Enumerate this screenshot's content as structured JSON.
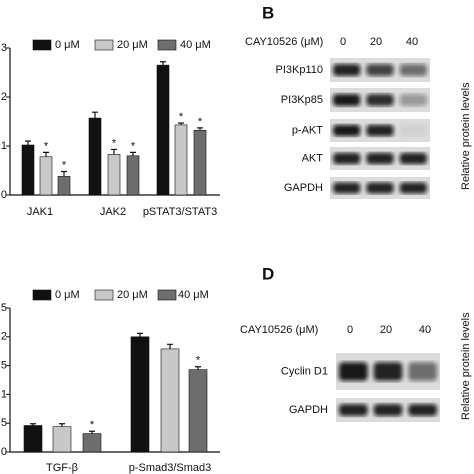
{
  "chart_data": [
    {
      "type": "bar",
      "categories": [
        "JAK1",
        "JAK2",
        "pSTAT3/STAT3"
      ],
      "ylim": [
        0,
        3
      ],
      "yticks": [
        0,
        1,
        2,
        3
      ],
      "series": [
        {
          "name": "0 μM",
          "color": "#111111",
          "values": [
            1.02,
            1.57,
            2.65
          ],
          "errors": [
            0.08,
            0.12,
            0.07
          ]
        },
        {
          "name": "20 μM",
          "color": "#c8c8c8",
          "values": [
            0.78,
            0.83,
            1.43
          ],
          "errors": [
            0.09,
            0.1,
            0.04
          ],
          "significance": [
            "*",
            "*",
            "*"
          ]
        },
        {
          "name": "40 μM",
          "color": "#6e6e6e",
          "values": [
            0.38,
            0.8,
            1.32
          ],
          "errors": [
            0.1,
            0.07,
            0.05
          ],
          "significance": [
            "*",
            "*",
            "*"
          ]
        }
      ]
    },
    {
      "type": "bar",
      "categories": [
        "TGF-β",
        "p-Smad3/Smad3"
      ],
      "ylim": [
        0,
        2.5
      ],
      "yticks": [
        0,
        0.5,
        1.0,
        1.5,
        2.0,
        2.5
      ],
      "series": [
        {
          "name": "0 μM",
          "color": "#111111",
          "values": [
            0.46,
            2.0
          ],
          "errors": [
            0.03,
            0.06
          ]
        },
        {
          "name": "20 μM",
          "color": "#c8c8c8",
          "values": [
            0.44,
            1.79
          ],
          "errors": [
            0.05,
            0.08
          ],
          "significance": [
            null,
            null
          ]
        },
        {
          "name": "40 μM",
          "color": "#6e6e6e",
          "values": [
            0.32,
            1.43
          ],
          "errors": [
            0.04,
            0.05
          ],
          "significance": [
            "*",
            "*"
          ]
        }
      ]
    }
  ],
  "blots": [
    {
      "label": "B",
      "treatment": "CAY10526 (μM)",
      "doses": [
        "0",
        "20",
        "40"
      ],
      "rows": [
        "PI3Kp110",
        "PI3Kp85",
        "p-AKT",
        "AKT",
        "GAPDH"
      ],
      "ylabel": "Relative protein levels"
    },
    {
      "label": "D",
      "treatment": "CAY10526 (μM)",
      "doses": [
        "0",
        "20",
        "40"
      ],
      "rows": [
        "Cyclin D1",
        "GAPDH"
      ],
      "ylabel": "Relative protein levels"
    }
  ]
}
